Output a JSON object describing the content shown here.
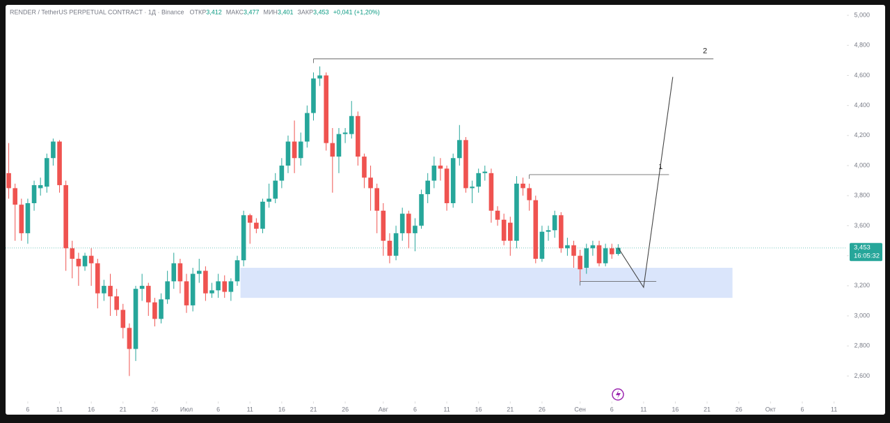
{
  "chart_data": {
    "type": "candlestick",
    "title": "RENDER / TetherUS PERPETUAL CONTRACT · 1Д · Binance",
    "ohlc_legend": [
      {
        "name": "ОТКР",
        "value": "3,412"
      },
      {
        "name": "МАКС",
        "value": "3,477"
      },
      {
        "name": "МИН",
        "value": "3,401"
      },
      {
        "name": "ЗАКР",
        "value": "3,453"
      },
      {
        "name": "",
        "value": "+0,041 (+1,20%)"
      }
    ],
    "up_color": "#26a69a",
    "down_color": "#ef5350",
    "xlim": [
      -3.5,
      128.8
    ],
    "ylim": [
      2.44,
      5.065
    ],
    "xticks": [
      {
        "value": 0,
        "label": "6"
      },
      {
        "value": 5,
        "label": "11"
      },
      {
        "value": 10,
        "label": "16"
      },
      {
        "value": 15,
        "label": "21"
      },
      {
        "value": 20,
        "label": "26"
      },
      {
        "value": 25,
        "label": "Июл"
      },
      {
        "value": 30,
        "label": "6"
      },
      {
        "value": 35,
        "label": "11"
      },
      {
        "value": 40,
        "label": "16"
      },
      {
        "value": 45,
        "label": "21"
      },
      {
        "value": 50,
        "label": "26"
      },
      {
        "value": 56,
        "label": "Авг"
      },
      {
        "value": 61,
        "label": "6"
      },
      {
        "value": 66,
        "label": "11"
      },
      {
        "value": 71,
        "label": "16"
      },
      {
        "value": 76,
        "label": "21"
      },
      {
        "value": 81,
        "label": "26"
      },
      {
        "value": 87,
        "label": "Сен"
      },
      {
        "value": 92,
        "label": "6"
      },
      {
        "value": 97,
        "label": "11"
      },
      {
        "value": 102,
        "label": "16"
      },
      {
        "value": 107,
        "label": "21"
      },
      {
        "value": 112,
        "label": "26"
      },
      {
        "value": 117,
        "label": "Окт"
      },
      {
        "value": 122,
        "label": "6"
      },
      {
        "value": 127,
        "label": "11"
      }
    ],
    "yticks": [
      {
        "value": 2.6,
        "label": "2,600"
      },
      {
        "value": 2.8,
        "label": "2,800"
      },
      {
        "value": 3.0,
        "label": "3,000"
      },
      {
        "value": 3.2,
        "label": "3,200"
      },
      {
        "value": 3.4,
        "label": "3,400"
      },
      {
        "value": 3.6,
        "label": "3,600"
      },
      {
        "value": 3.8,
        "label": "3,800"
      },
      {
        "value": 4.0,
        "label": "4,000"
      },
      {
        "value": 4.2,
        "label": "4,200"
      },
      {
        "value": 4.4,
        "label": "4,400"
      },
      {
        "value": 4.6,
        "label": "4,600"
      },
      {
        "value": 4.8,
        "label": "4,800"
      },
      {
        "value": 5.0,
        "label": "5,000"
      }
    ],
    "x": [
      -3,
      -2,
      -1,
      0,
      1,
      2,
      3,
      4,
      5,
      6,
      7,
      8,
      9,
      10,
      11,
      12,
      13,
      14,
      15,
      16,
      17,
      18,
      19,
      20,
      21,
      22,
      23,
      24,
      25,
      26,
      27,
      28,
      29,
      30,
      31,
      32,
      33,
      34,
      35,
      36,
      37,
      38,
      39,
      40,
      41,
      42,
      43,
      44,
      45,
      46,
      47,
      48,
      49,
      50,
      51,
      52,
      53,
      54,
      55,
      56,
      57,
      58,
      59,
      60,
      61,
      62,
      63,
      64,
      65,
      66,
      67,
      68,
      69,
      70,
      71,
      72,
      73,
      74,
      75,
      76,
      77,
      78,
      79,
      80,
      81,
      82,
      83,
      84,
      85,
      86,
      87,
      88,
      89,
      90,
      91,
      92,
      93
    ],
    "open": [
      3.95,
      3.85,
      3.74,
      3.55,
      3.75,
      3.85,
      3.86,
      4.05,
      4.16,
      3.87,
      3.45,
      3.38,
      3.33,
      3.4,
      3.35,
      3.15,
      3.2,
      3.13,
      3.04,
      2.92,
      2.78,
      3.18,
      3.2,
      3.09,
      2.98,
      3.11,
      3.23,
      3.35,
      3.23,
      3.07,
      3.28,
      3.3,
      3.15,
      3.17,
      3.23,
      3.16,
      3.23,
      3.37,
      3.67,
      3.62,
      3.58,
      3.76,
      3.78,
      3.9,
      4.0,
      4.16,
      4.05,
      4.16,
      4.35,
      4.58,
      4.6,
      4.15,
      4.06,
      4.21,
      4.21,
      4.33,
      4.06,
      3.92,
      3.85,
      3.7,
      3.5,
      3.4,
      3.55,
      3.68,
      3.55,
      3.6,
      3.81,
      3.9,
      4.0,
      3.98,
      3.75,
      4.05,
      4.17,
      3.85,
      3.86,
      3.95,
      3.95,
      3.7,
      3.64,
      3.62,
      3.5,
      3.88,
      3.85,
      3.77,
      3.38,
      3.56,
      3.57,
      3.67,
      3.45,
      3.47,
      3.4,
      3.32,
      3.45,
      3.47,
      3.35,
      3.45,
      3.412
    ],
    "high": [
      4.15,
      3.88,
      3.78,
      3.78,
      3.9,
      3.92,
      4.08,
      4.18,
      4.17,
      3.9,
      3.5,
      3.42,
      3.42,
      3.45,
      3.38,
      3.24,
      3.28,
      3.18,
      3.08,
      2.95,
      3.2,
      3.28,
      3.22,
      3.12,
      3.15,
      3.3,
      3.42,
      3.38,
      3.28,
      3.32,
      3.38,
      3.33,
      3.22,
      3.28,
      3.27,
      3.25,
      3.4,
      3.7,
      3.68,
      3.65,
      3.78,
      3.88,
      3.95,
      4.05,
      4.2,
      4.3,
      4.22,
      4.4,
      4.62,
      4.66,
      4.62,
      4.25,
      4.25,
      4.25,
      4.43,
      4.36,
      4.08,
      4.0,
      3.88,
      3.75,
      3.55,
      3.6,
      3.72,
      3.7,
      3.65,
      3.84,
      3.95,
      4.06,
      4.05,
      4.0,
      4.08,
      4.27,
      4.19,
      3.9,
      3.98,
      4.0,
      3.98,
      3.73,
      3.68,
      3.66,
      3.93,
      3.92,
      3.88,
      3.8,
      3.6,
      3.6,
      3.7,
      3.69,
      3.52,
      3.5,
      3.44,
      3.48,
      3.5,
      3.5,
      3.48,
      3.48,
      3.477
    ],
    "low": [
      3.78,
      3.5,
      3.5,
      3.48,
      3.7,
      3.8,
      3.82,
      4.0,
      3.82,
      3.3,
      3.25,
      3.2,
      3.3,
      3.2,
      3.05,
      3.1,
      3.0,
      3.0,
      2.85,
      2.6,
      2.7,
      3.1,
      3.0,
      2.93,
      2.95,
      3.08,
      3.18,
      3.15,
      3.02,
      3.03,
      3.22,
      3.1,
      3.12,
      3.12,
      3.12,
      3.1,
      3.2,
      3.33,
      3.48,
      3.55,
      3.55,
      3.72,
      3.75,
      3.85,
      3.95,
      3.95,
      4.0,
      4.12,
      4.3,
      4.53,
      4.1,
      3.82,
      3.95,
      4.15,
      4.18,
      4.0,
      3.85,
      3.7,
      3.55,
      3.4,
      3.35,
      3.37,
      3.5,
      3.45,
      3.43,
      3.58,
      3.75,
      3.85,
      3.9,
      3.7,
      3.72,
      4.0,
      3.82,
      3.75,
      3.82,
      3.9,
      3.62,
      3.6,
      3.47,
      3.4,
      3.45,
      3.8,
      3.7,
      3.35,
      3.36,
      3.5,
      3.52,
      3.42,
      3.4,
      3.32,
      3.23,
      3.28,
      3.4,
      3.33,
      3.33,
      3.38,
      3.401
    ],
    "close": [
      3.85,
      3.74,
      3.55,
      3.75,
      3.87,
      3.87,
      4.05,
      4.16,
      3.87,
      3.45,
      3.38,
      3.33,
      3.4,
      3.35,
      3.15,
      3.2,
      3.13,
      3.04,
      2.92,
      2.78,
      3.18,
      3.2,
      3.09,
      2.98,
      3.11,
      3.23,
      3.35,
      3.23,
      3.07,
      3.28,
      3.3,
      3.15,
      3.17,
      3.23,
      3.16,
      3.23,
      3.37,
      3.67,
      3.62,
      3.58,
      3.76,
      3.78,
      3.9,
      4.0,
      4.16,
      4.05,
      4.16,
      4.35,
      4.58,
      4.6,
      4.15,
      4.06,
      4.21,
      4.22,
      4.33,
      4.06,
      3.92,
      3.85,
      3.7,
      3.5,
      3.4,
      3.55,
      3.68,
      3.55,
      3.6,
      3.81,
      3.9,
      4.0,
      3.98,
      3.75,
      4.05,
      4.17,
      3.85,
      3.86,
      3.95,
      3.96,
      3.7,
      3.64,
      3.5,
      3.5,
      3.88,
      3.85,
      3.77,
      3.38,
      3.56,
      3.57,
      3.67,
      3.45,
      3.47,
      3.4,
      3.31,
      3.45,
      3.47,
      3.35,
      3.45,
      3.41,
      3.453
    ],
    "last_price": {
      "value": 3.453,
      "label": "3,453"
    },
    "countdown": "16:05:32",
    "drawings": {
      "zone": {
        "x": [
          33.5,
          111
        ],
        "y": [
          3.12,
          3.32
        ]
      },
      "levels": [
        {
          "label": "2",
          "price": 4.71,
          "x": [
            45,
            108
          ]
        },
        {
          "label": "1",
          "price": 3.94,
          "x": [
            79,
            101
          ]
        },
        {
          "price": 3.23,
          "x": [
            87,
            99
          ]
        }
      ],
      "path": {
        "x": [
          93,
          97,
          101.6
        ],
        "y": [
          3.453,
          3.19,
          4.59
        ]
      }
    }
  }
}
